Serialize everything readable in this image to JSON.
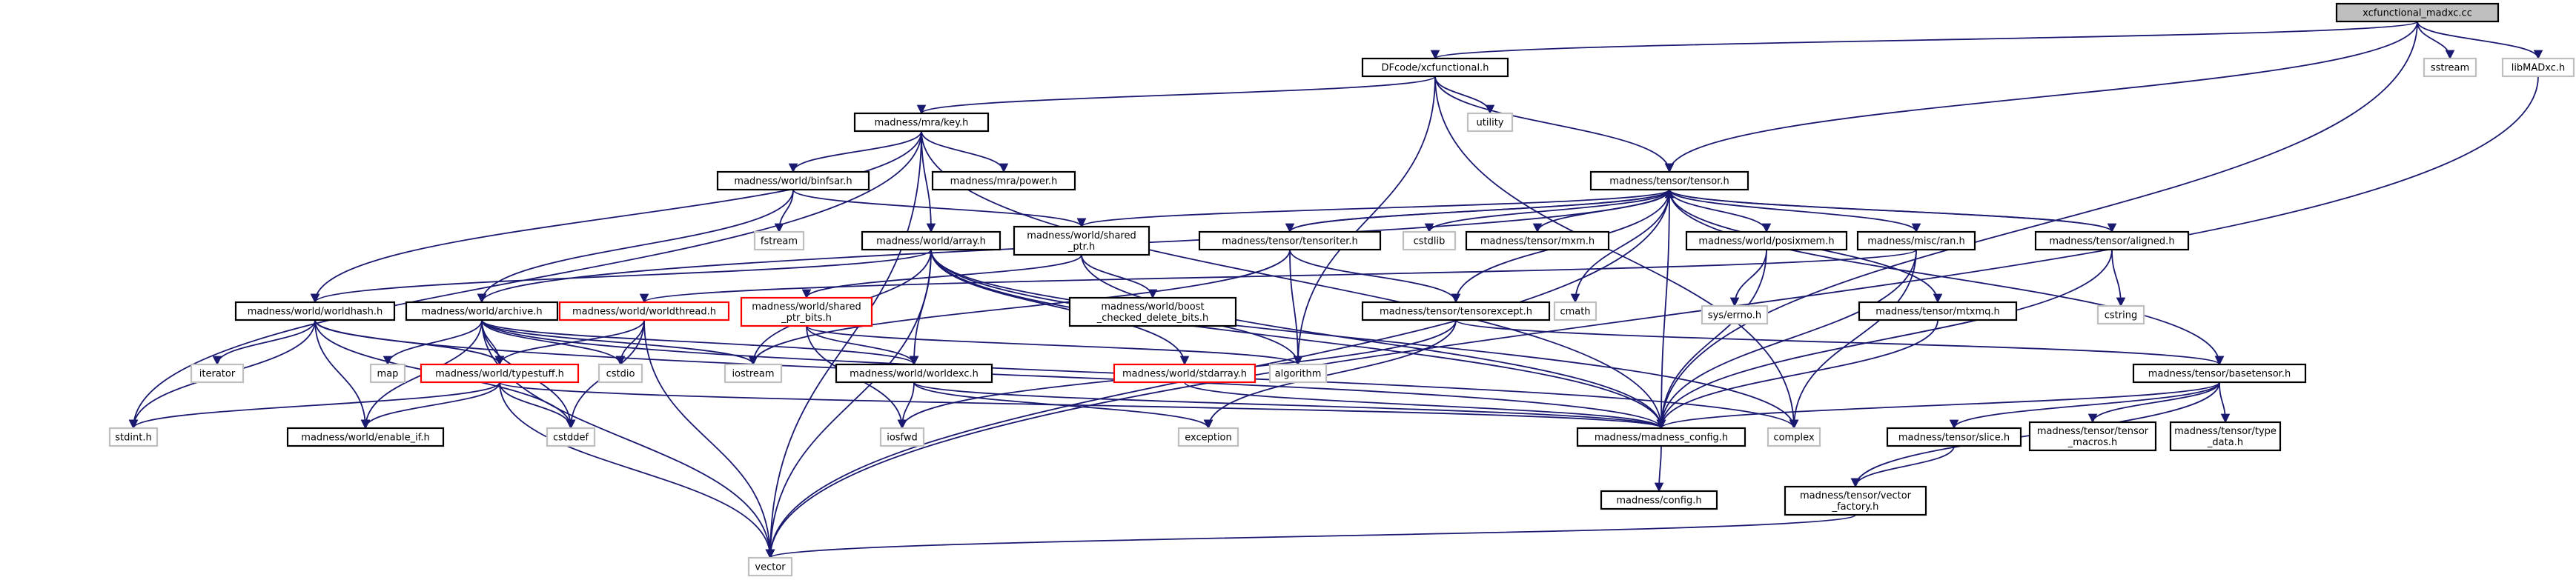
{
  "colors": {
    "edge": "#191970",
    "root_fill": "#bfbfbf",
    "node_stroke": "#000000",
    "broken_stroke": "#ff0000",
    "system_stroke": "#bfbfbf"
  },
  "nodes": [
    {
      "id": "root",
      "lines": [
        "xcfunctional_madxc.cc"
      ],
      "kind": "root"
    },
    {
      "id": "sstream",
      "lines": [
        "sstream"
      ],
      "kind": "system"
    },
    {
      "id": "libmadxc",
      "lines": [
        "libMADxc.h"
      ],
      "kind": "system"
    },
    {
      "id": "xcfunctional",
      "lines": [
        "DFcode/xcfunctional.h"
      ],
      "kind": "normal"
    },
    {
      "id": "utility",
      "lines": [
        "utility"
      ],
      "kind": "system"
    },
    {
      "id": "key",
      "lines": [
        "madness/mra/key.h"
      ],
      "kind": "normal"
    },
    {
      "id": "tensor",
      "lines": [
        "madness/tensor/tensor.h"
      ],
      "kind": "normal"
    },
    {
      "id": "binfsar",
      "lines": [
        "madness/world/binfsar.h"
      ],
      "kind": "normal"
    },
    {
      "id": "power",
      "lines": [
        "madness/mra/power.h"
      ],
      "kind": "normal"
    },
    {
      "id": "fstream",
      "lines": [
        "fstream"
      ],
      "kind": "system"
    },
    {
      "id": "array",
      "lines": [
        "madness/world/array.h"
      ],
      "kind": "normal"
    },
    {
      "id": "sharedptr",
      "lines": [
        "madness/world/shared",
        "_ptr.h"
      ],
      "kind": "normal"
    },
    {
      "id": "tensoriter",
      "lines": [
        "madness/tensor/tensoriter.h"
      ],
      "kind": "normal"
    },
    {
      "id": "cstdlib",
      "lines": [
        "cstdlib"
      ],
      "kind": "system"
    },
    {
      "id": "mxm",
      "lines": [
        "madness/tensor/mxm.h"
      ],
      "kind": "normal"
    },
    {
      "id": "posixmem",
      "lines": [
        "madness/world/posixmem.h"
      ],
      "kind": "normal"
    },
    {
      "id": "ran",
      "lines": [
        "madness/misc/ran.h"
      ],
      "kind": "normal"
    },
    {
      "id": "aligned",
      "lines": [
        "madness/tensor/aligned.h"
      ],
      "kind": "normal"
    },
    {
      "id": "worldhash",
      "lines": [
        "madness/world/worldhash.h"
      ],
      "kind": "normal"
    },
    {
      "id": "archive",
      "lines": [
        "madness/world/archive.h"
      ],
      "kind": "normal"
    },
    {
      "id": "worldthread",
      "lines": [
        "madness/world/worldthread.h"
      ],
      "kind": "broken"
    },
    {
      "id": "sharedptrbits",
      "lines": [
        "madness/world/shared",
        "_ptr_bits.h"
      ],
      "kind": "broken"
    },
    {
      "id": "boostdelete",
      "lines": [
        "madness/world/boost",
        "_checked_delete_bits.h"
      ],
      "kind": "normal"
    },
    {
      "id": "tensorexcept",
      "lines": [
        "madness/tensor/tensorexcept.h"
      ],
      "kind": "normal"
    },
    {
      "id": "cmath",
      "lines": [
        "cmath"
      ],
      "kind": "system"
    },
    {
      "id": "errno",
      "lines": [
        "sys/errno.h"
      ],
      "kind": "system"
    },
    {
      "id": "mtxmq",
      "lines": [
        "madness/tensor/mtxmq.h"
      ],
      "kind": "normal"
    },
    {
      "id": "cstring",
      "lines": [
        "cstring"
      ],
      "kind": "system"
    },
    {
      "id": "iterator",
      "lines": [
        "iterator"
      ],
      "kind": "system"
    },
    {
      "id": "map",
      "lines": [
        "map"
      ],
      "kind": "system"
    },
    {
      "id": "typestuff",
      "lines": [
        "madness/world/typestuff.h"
      ],
      "kind": "broken"
    },
    {
      "id": "cstdio",
      "lines": [
        "cstdio"
      ],
      "kind": "system"
    },
    {
      "id": "iostream",
      "lines": [
        "iostream"
      ],
      "kind": "system"
    },
    {
      "id": "worldexc",
      "lines": [
        "madness/world/worldexc.h"
      ],
      "kind": "normal"
    },
    {
      "id": "stdarray",
      "lines": [
        "madness/world/stdarray.h"
      ],
      "kind": "broken"
    },
    {
      "id": "algorithm",
      "lines": [
        "algorithm"
      ],
      "kind": "system"
    },
    {
      "id": "basetensor",
      "lines": [
        "madness/tensor/basetensor.h"
      ],
      "kind": "normal"
    },
    {
      "id": "stdint",
      "lines": [
        "stdint.h"
      ],
      "kind": "system"
    },
    {
      "id": "enableif",
      "lines": [
        "madness/world/enable_if.h"
      ],
      "kind": "normal"
    },
    {
      "id": "cstddef",
      "lines": [
        "cstddef"
      ],
      "kind": "system"
    },
    {
      "id": "iosfwd",
      "lines": [
        "iosfwd"
      ],
      "kind": "system"
    },
    {
      "id": "exception",
      "lines": [
        "exception"
      ],
      "kind": "system"
    },
    {
      "id": "madconfig",
      "lines": [
        "madness/madness_config.h"
      ],
      "kind": "normal"
    },
    {
      "id": "complex",
      "lines": [
        "complex"
      ],
      "kind": "system"
    },
    {
      "id": "slice",
      "lines": [
        "madness/tensor/slice.h"
      ],
      "kind": "normal"
    },
    {
      "id": "tensormacros",
      "lines": [
        "madness/tensor/tensor",
        "_macros.h"
      ],
      "kind": "normal"
    },
    {
      "id": "typedata",
      "lines": [
        "madness/tensor/type",
        "_data.h"
      ],
      "kind": "normal"
    },
    {
      "id": "config",
      "lines": [
        "madness/config.h"
      ],
      "kind": "normal"
    },
    {
      "id": "vectorfactory",
      "lines": [
        "madness/tensor/vector",
        "_factory.h"
      ],
      "kind": "normal"
    },
    {
      "id": "vector",
      "lines": [
        "vector"
      ],
      "kind": "system"
    }
  ],
  "edges": [
    [
      "root",
      "xcfunctional"
    ],
    [
      "root",
      "sstream"
    ],
    [
      "root",
      "libmadxc"
    ],
    [
      "root",
      "tensor"
    ],
    [
      "root",
      "madconfig"
    ],
    [
      "xcfunctional",
      "utility"
    ],
    [
      "xcfunctional",
      "key"
    ],
    [
      "xcfunctional",
      "tensor"
    ],
    [
      "xcfunctional",
      "algorithm"
    ],
    [
      "xcfunctional",
      "complex"
    ],
    [
      "key",
      "binfsar"
    ],
    [
      "key",
      "power"
    ],
    [
      "key",
      "array"
    ],
    [
      "key",
      "worldhash"
    ],
    [
      "key",
      "stdint"
    ],
    [
      "key",
      "vector"
    ],
    [
      "key",
      "madconfig"
    ],
    [
      "binfsar",
      "fstream"
    ],
    [
      "binfsar",
      "archive"
    ],
    [
      "binfsar",
      "sharedptr"
    ],
    [
      "array",
      "worldhash"
    ],
    [
      "array",
      "worldexc"
    ],
    [
      "array",
      "stdarray"
    ],
    [
      "array",
      "vector"
    ],
    [
      "array",
      "iostream"
    ],
    [
      "array",
      "algorithm"
    ],
    [
      "array",
      "madconfig"
    ],
    [
      "array",
      "complex"
    ],
    [
      "sharedptr",
      "sharedptrbits"
    ],
    [
      "sharedptr",
      "boostdelete"
    ],
    [
      "sharedptr",
      "madconfig"
    ],
    [
      "tensor",
      "sharedptr"
    ],
    [
      "tensor",
      "tensoriter"
    ],
    [
      "tensor",
      "cstdlib"
    ],
    [
      "tensor",
      "mxm"
    ],
    [
      "tensor",
      "posixmem"
    ],
    [
      "tensor",
      "ran"
    ],
    [
      "tensor",
      "aligned"
    ],
    [
      "tensor",
      "tensorexcept"
    ],
    [
      "tensor",
      "cmath"
    ],
    [
      "tensor",
      "basetensor"
    ],
    [
      "tensor",
      "mtxmq"
    ],
    [
      "tensor",
      "madconfig"
    ],
    [
      "tensor",
      "archive"
    ],
    [
      "tensor",
      "vector"
    ],
    [
      "tensoriter",
      "tensor"
    ],
    [
      "tensoriter",
      "tensorexcept"
    ],
    [
      "tensoriter",
      "algorithm"
    ],
    [
      "tensoriter",
      "iostream"
    ],
    [
      "posixmem",
      "errno"
    ],
    [
      "posixmem",
      "madconfig"
    ],
    [
      "ran",
      "worldthread"
    ],
    [
      "ran",
      "complex"
    ],
    [
      "ran",
      "madconfig"
    ],
    [
      "aligned",
      "cstring"
    ],
    [
      "aligned",
      "madconfig"
    ],
    [
      "aligned",
      "tensor"
    ],
    [
      "worldhash",
      "iterator"
    ],
    [
      "worldhash",
      "stdint"
    ],
    [
      "worldhash",
      "typestuff"
    ],
    [
      "worldhash",
      "enableif"
    ],
    [
      "worldhash",
      "cstddef"
    ],
    [
      "worldhash",
      "madconfig"
    ],
    [
      "archive",
      "map"
    ],
    [
      "archive",
      "typestuff"
    ],
    [
      "archive",
      "cstdio"
    ],
    [
      "archive",
      "iostream"
    ],
    [
      "archive",
      "worldexc"
    ],
    [
      "archive",
      "enableif"
    ],
    [
      "archive",
      "complex"
    ],
    [
      "archive",
      "vector"
    ],
    [
      "archive",
      "cstddef"
    ],
    [
      "worldthread",
      "typestuff"
    ],
    [
      "worldthread",
      "cstdio"
    ],
    [
      "worldthread",
      "cstddef"
    ],
    [
      "worldthread",
      "vector"
    ],
    [
      "sharedptrbits",
      "worldexc"
    ],
    [
      "sharedptrbits",
      "iosfwd"
    ],
    [
      "sharedptrbits",
      "algorithm"
    ],
    [
      "tensorexcept",
      "basetensor"
    ],
    [
      "tensorexcept",
      "iosfwd"
    ],
    [
      "tensorexcept",
      "exception"
    ],
    [
      "mtxmq",
      "madconfig"
    ],
    [
      "typestuff",
      "stdint"
    ],
    [
      "typestuff",
      "enableif"
    ],
    [
      "typestuff",
      "cstddef"
    ],
    [
      "typestuff",
      "madconfig"
    ],
    [
      "typestuff",
      "vector"
    ],
    [
      "worldexc",
      "iosfwd"
    ],
    [
      "worldexc",
      "exception"
    ],
    [
      "worldexc",
      "madconfig"
    ],
    [
      "stdarray",
      "madconfig"
    ],
    [
      "basetensor",
      "madconfig"
    ],
    [
      "basetensor",
      "slice"
    ],
    [
      "basetensor",
      "tensormacros"
    ],
    [
      "basetensor",
      "typedata"
    ],
    [
      "basetensor",
      "vectorfactory"
    ],
    [
      "madconfig",
      "config"
    ],
    [
      "slice",
      "vectorfactory"
    ],
    [
      "vectorfactory",
      "vector"
    ],
    [
      "libmadxc",
      "vector"
    ]
  ]
}
